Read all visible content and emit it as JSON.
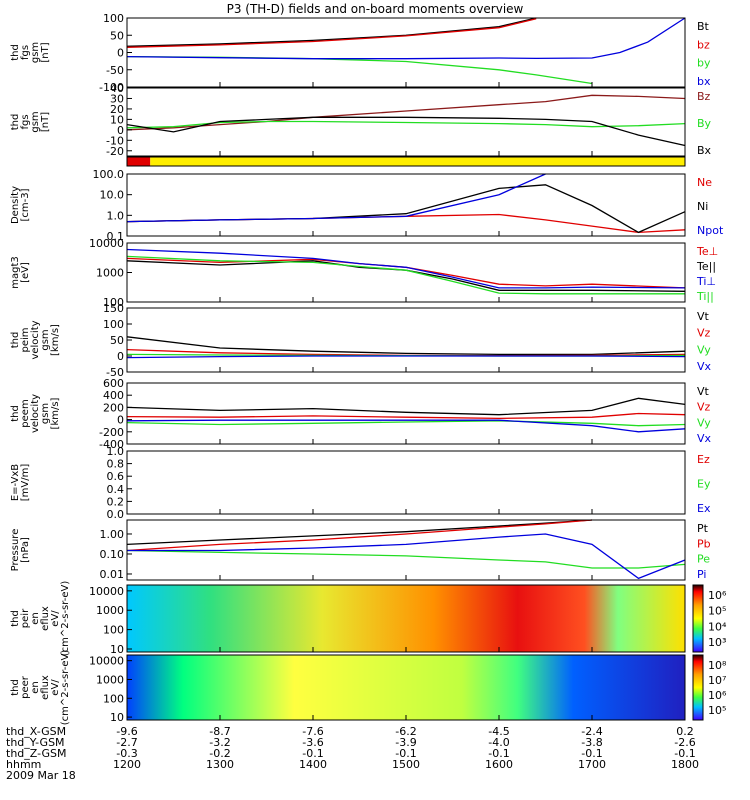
{
  "title": "P3 (TH-D) fields and on-board moments overview",
  "date_label": "2009 Mar 18",
  "x_axis": {
    "time_ticks": [
      "1200",
      "1300",
      "1400",
      "1500",
      "1600",
      "1700",
      "1800"
    ],
    "rows": [
      {
        "label": "thd_X-GSM",
        "values": [
          "-9.6",
          "-8.7",
          "-7.6",
          "-6.2",
          "-4.5",
          "-2.4",
          "0.2"
        ]
      },
      {
        "label": "thd_Y-GSM",
        "values": [
          "-2.7",
          "-3.2",
          "-3.6",
          "-3.9",
          "-4.0",
          "-3.8",
          "-2.6"
        ]
      },
      {
        "label": "thd_Z-GSM",
        "values": [
          "-0.3",
          "-0.2",
          "-0.1",
          "-0.1",
          "-0.1",
          "-0.1",
          "-0.1"
        ]
      },
      {
        "label": "hhmm",
        "values": []
      }
    ]
  },
  "colors": {
    "black": "#000000",
    "red": "#e00000",
    "green": "#22dd22",
    "blue": "#0000dd",
    "brown": "#8b1a1a",
    "yellow": "#ffee00"
  },
  "chart_data": [
    {
      "type": "line",
      "ylabel": "thd fgs gsm [nT]",
      "ylim": [
        -100,
        100
      ],
      "yticks": [
        "100",
        "50",
        "0",
        "-50",
        "-100"
      ],
      "legend": [
        {
          "text": "Bt",
          "color": "black"
        },
        {
          "text": "bz",
          "color": "red"
        },
        {
          "text": "by",
          "color": "green"
        },
        {
          "text": "bx",
          "color": "blue"
        }
      ],
      "x": [
        1200,
        1300,
        1400,
        1500,
        1600,
        1640,
        1700,
        1730,
        1760,
        1800
      ],
      "series": [
        {
          "name": "Bt",
          "color": "black",
          "values": [
            18,
            25,
            35,
            50,
            75,
            100,
            null,
            null,
            null,
            null
          ]
        },
        {
          "name": "bz",
          "color": "red",
          "values": [
            15,
            22,
            32,
            48,
            72,
            98,
            null,
            null,
            null,
            null
          ]
        },
        {
          "name": "by",
          "color": "green",
          "values": [
            -12,
            -14,
            -18,
            -26,
            -50,
            -65,
            -90,
            null,
            null,
            null
          ]
        },
        {
          "name": "bx",
          "color": "blue",
          "values": [
            -12,
            -15,
            -18,
            -18,
            -16,
            -17,
            -16,
            0,
            30,
            100
          ]
        }
      ]
    },
    {
      "type": "line",
      "ylabel": "thd fgs gsm [nT]",
      "ylim": [
        -25,
        40
      ],
      "yticks": [
        "40",
        "30",
        "20",
        "10",
        "0",
        "-10",
        "-20"
      ],
      "legend": [
        {
          "text": "Bz",
          "color": "brown"
        },
        {
          "text": "By",
          "color": "green"
        },
        {
          "text": "Bx",
          "color": "black"
        }
      ],
      "x": [
        1200,
        1250,
        1300,
        1350,
        1400,
        1500,
        1600,
        1650,
        1700,
        1750,
        1800
      ],
      "series": [
        {
          "name": "Bz",
          "color": "brown",
          "values": [
            0,
            2,
            5,
            8,
            12,
            18,
            24,
            27,
            33,
            32,
            30
          ]
        },
        {
          "name": "By",
          "color": "green",
          "values": [
            2,
            3,
            7,
            8,
            8,
            7,
            6,
            5,
            3,
            4,
            6
          ]
        },
        {
          "name": "Bx",
          "color": "black",
          "values": [
            5,
            -2,
            8,
            10,
            12,
            12,
            11,
            10,
            8,
            -5,
            -15
          ]
        }
      ]
    },
    {
      "type": "line",
      "ylabel": "Density [cm-3]",
      "yscale": "log",
      "ylim": [
        0.1,
        100
      ],
      "yticks": [
        "100.0",
        "10.0",
        "1.0",
        "0.1"
      ],
      "legend": [
        {
          "text": "Ne",
          "color": "red"
        },
        {
          "text": "Ni",
          "color": "black"
        },
        {
          "text": "Npot",
          "color": "blue"
        }
      ],
      "x": [
        1200,
        1300,
        1400,
        1500,
        1600,
        1650,
        1700,
        1750,
        1800
      ],
      "series": [
        {
          "name": "Ne",
          "color": "red",
          "values": [
            0.5,
            0.6,
            0.7,
            0.9,
            1.1,
            0.6,
            0.3,
            0.15,
            0.2
          ]
        },
        {
          "name": "Ni",
          "color": "black",
          "values": [
            0.5,
            0.6,
            0.7,
            1.2,
            20,
            30,
            3,
            0.15,
            1.5
          ]
        },
        {
          "name": "Npot",
          "color": "blue",
          "values": [
            0.5,
            0.6,
            0.7,
            0.9,
            10,
            100,
            null,
            null,
            null
          ]
        }
      ]
    },
    {
      "type": "line",
      "ylabel": "magt3 [eV]",
      "yscale": "log",
      "ylim": [
        100,
        10000
      ],
      "yticks": [
        "10000",
        "1000",
        "100"
      ],
      "legend": [
        {
          "text": "Te⊥",
          "color": "red"
        },
        {
          "text": "Te||",
          "color": "black"
        },
        {
          "text": "Ti⊥",
          "color": "blue"
        },
        {
          "text": "Ti||",
          "color": "green"
        }
      ],
      "x": [
        1200,
        1300,
        1400,
        1450,
        1500,
        1550,
        1600,
        1650,
        1700,
        1800
      ],
      "series": [
        {
          "name": "Te⊥",
          "color": "red",
          "values": [
            3000,
            2200,
            2800,
            2000,
            1500,
            800,
            400,
            350,
            400,
            300
          ]
        },
        {
          "name": "Te||",
          "color": "black",
          "values": [
            2500,
            1800,
            2500,
            1500,
            1200,
            600,
            250,
            250,
            250,
            230
          ]
        },
        {
          "name": "Ti⊥",
          "color": "blue",
          "values": [
            6000,
            4500,
            3000,
            2000,
            1500,
            700,
            300,
            300,
            320,
            300
          ]
        },
        {
          "name": "Ti||",
          "color": "green",
          "values": [
            3500,
            2500,
            2200,
            1600,
            1200,
            500,
            200,
            190,
            190,
            190
          ]
        }
      ]
    },
    {
      "type": "line",
      "ylabel": "thd peim velocity gsm [km/s]",
      "ylim": [
        -50,
        150
      ],
      "yticks": [
        "150",
        "100",
        "50",
        "0",
        "-50"
      ],
      "legend": [
        {
          "text": "Vt",
          "color": "black"
        },
        {
          "text": "Vz",
          "color": "red"
        },
        {
          "text": "Vy",
          "color": "green"
        },
        {
          "text": "Vx",
          "color": "blue"
        }
      ],
      "x": [
        1200,
        1300,
        1400,
        1500,
        1600,
        1700,
        1800
      ],
      "series": [
        {
          "name": "Vt",
          "color": "black",
          "values": [
            60,
            25,
            15,
            8,
            5,
            5,
            15
          ]
        },
        {
          "name": "Vz",
          "color": "red",
          "values": [
            20,
            10,
            5,
            2,
            1,
            2,
            5
          ]
        },
        {
          "name": "Vy",
          "color": "green",
          "values": [
            5,
            3,
            2,
            1,
            0,
            0,
            2
          ]
        },
        {
          "name": "Vx",
          "color": "blue",
          "values": [
            -5,
            -2,
            0,
            0,
            0,
            0,
            -2
          ]
        }
      ]
    },
    {
      "type": "line",
      "ylabel": "thd peem velocity gsm [km/s]",
      "ylim": [
        -400,
        600
      ],
      "yticks": [
        "600",
        "400",
        "200",
        "0",
        "-200",
        "-400"
      ],
      "legend": [
        {
          "text": "Vt",
          "color": "black"
        },
        {
          "text": "Vz",
          "color": "red"
        },
        {
          "text": "Vy",
          "color": "green"
        },
        {
          "text": "Vx",
          "color": "blue"
        }
      ],
      "x": [
        1200,
        1300,
        1400,
        1500,
        1600,
        1700,
        1750,
        1800
      ],
      "series": [
        {
          "name": "Vt",
          "color": "black",
          "values": [
            200,
            150,
            180,
            120,
            80,
            150,
            350,
            250
          ]
        },
        {
          "name": "Vz",
          "color": "red",
          "values": [
            50,
            40,
            60,
            40,
            20,
            40,
            100,
            80
          ]
        },
        {
          "name": "Vy",
          "color": "green",
          "values": [
            -50,
            -80,
            -60,
            -40,
            -20,
            -60,
            -100,
            -80
          ]
        },
        {
          "name": "Vx",
          "color": "blue",
          "values": [
            -20,
            -10,
            -10,
            -10,
            -10,
            -100,
            -200,
            -150
          ]
        }
      ]
    },
    {
      "type": "line",
      "ylabel": "E=-VxB [mV/m]",
      "ylim": [
        0,
        1
      ],
      "yticks": [
        "1.0",
        "0.8",
        "0.6",
        "0.4",
        "0.2",
        "0.0"
      ],
      "legend": [
        {
          "text": "Ez",
          "color": "red"
        },
        {
          "text": "Ey",
          "color": "green"
        },
        {
          "text": "Ex",
          "color": "blue"
        }
      ],
      "x": [],
      "series": []
    },
    {
      "type": "line",
      "ylabel": "Pressure [nPa]",
      "yscale": "log",
      "ylim": [
        0.005,
        5
      ],
      "yticks": [
        "1.00",
        "0.10",
        "0.01"
      ],
      "legend": [
        {
          "text": "Pt",
          "color": "black"
        },
        {
          "text": "Pb",
          "color": "red"
        },
        {
          "text": "Pe",
          "color": "green"
        },
        {
          "text": "Pi",
          "color": "blue"
        }
      ],
      "x": [
        1200,
        1300,
        1400,
        1500,
        1600,
        1650,
        1700,
        1750,
        1800
      ],
      "series": [
        {
          "name": "Pt",
          "color": "black",
          "values": [
            0.3,
            0.5,
            0.8,
            1.3,
            2.5,
            3.5,
            5,
            null,
            null
          ]
        },
        {
          "name": "Pb",
          "color": "red",
          "values": [
            0.15,
            0.3,
            0.5,
            1.0,
            2.2,
            3.2,
            5,
            null,
            null
          ]
        },
        {
          "name": "Pe",
          "color": "green",
          "values": [
            0.15,
            0.12,
            0.1,
            0.08,
            0.05,
            0.04,
            0.02,
            0.02,
            0.03
          ]
        },
        {
          "name": "Pi",
          "color": "blue",
          "values": [
            0.15,
            0.15,
            0.2,
            0.3,
            0.7,
            1.0,
            0.3,
            0.006,
            0.05
          ]
        }
      ]
    },
    {
      "type": "heatmap",
      "ylabel": "thd peir en eflux eV/ (cm^2-s-sr-eV)",
      "yscale": "log",
      "ylim": [
        7,
        20000
      ],
      "yticks": [
        "10000",
        "1000",
        "100",
        "10"
      ],
      "colorbar": {
        "ticks": [
          "10⁶",
          "10⁵",
          "10⁴",
          "10³"
        ]
      }
    },
    {
      "type": "heatmap",
      "ylabel": "thd peer en eflux eV/ (cm^2-s-sr-eV)",
      "yscale": "log",
      "ylim": [
        7,
        20000
      ],
      "yticks": [
        "10000",
        "1000",
        "100",
        "10"
      ],
      "colorbar": {
        "ticks": [
          "10⁸",
          "10⁷",
          "10⁶",
          "10⁵"
        ]
      }
    }
  ]
}
